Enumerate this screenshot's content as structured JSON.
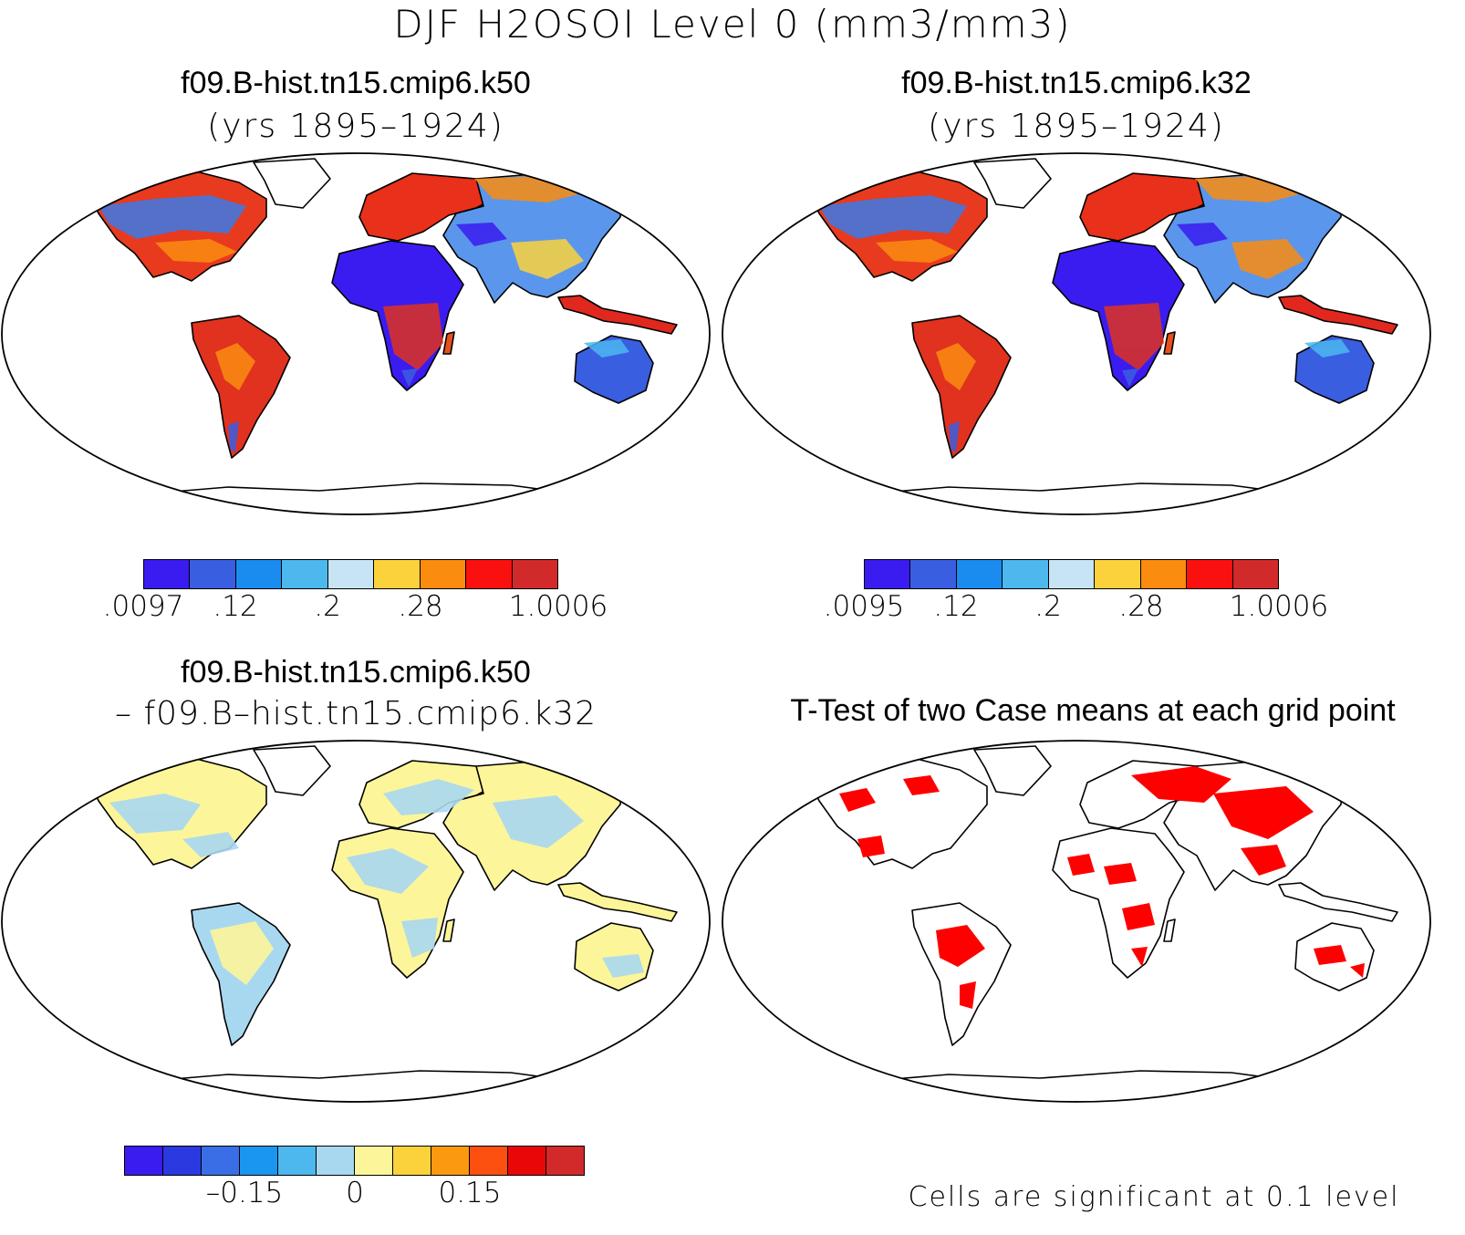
{
  "figure": {
    "title": "DJF H2OSOI Level 0 (mm3/mm3)"
  },
  "panels": {
    "top_left": {
      "case": "f09.B-hist.tn15.cmip6.k50",
      "years": "(yrs 1895–1924)",
      "colorbar": {
        "colors": [
          "#3a1cf0",
          "#3a5ee0",
          "#1a8cf0",
          "#4cb8ee",
          "#c6e4f4",
          "#fbd23c",
          "#fb8c10",
          "#fb1010",
          "#d22a2a"
        ],
        "ticks": [
          ".0097",
          ".12",
          ".2",
          ".28",
          "1.0006"
        ]
      }
    },
    "top_right": {
      "case": "f09.B-hist.tn15.cmip6.k32",
      "years": "(yrs 1895–1924)",
      "colorbar": {
        "colors": [
          "#3a1cf0",
          "#3a5ee0",
          "#1a8cf0",
          "#4cb8ee",
          "#c6e4f4",
          "#fbd23c",
          "#fb8c10",
          "#fb1010",
          "#d22a2a"
        ],
        "ticks": [
          ".0095",
          ".12",
          ".2",
          ".28",
          "1.0006"
        ]
      }
    },
    "bottom_left": {
      "case": "f09.B-hist.tn15.cmip6.k50",
      "subtitle": "– f09.B–hist.tn15.cmip6.k32",
      "colorbar": {
        "colors": [
          "#3a1cf0",
          "#2a3ae0",
          "#3a6ee6",
          "#1a96f0",
          "#4cb8ee",
          "#a8d8f0",
          "#fdf59a",
          "#fbd23c",
          "#fb9a10",
          "#fb5010",
          "#e80808",
          "#d22a2a"
        ],
        "ticks": [
          "–0.15",
          "0",
          "0.15"
        ]
      }
    },
    "bottom_right": {
      "title": "T-Test of two Case means at each grid point",
      "note": "Cells are significant at 0.1 level",
      "significant_color": "#ff0000"
    }
  }
}
